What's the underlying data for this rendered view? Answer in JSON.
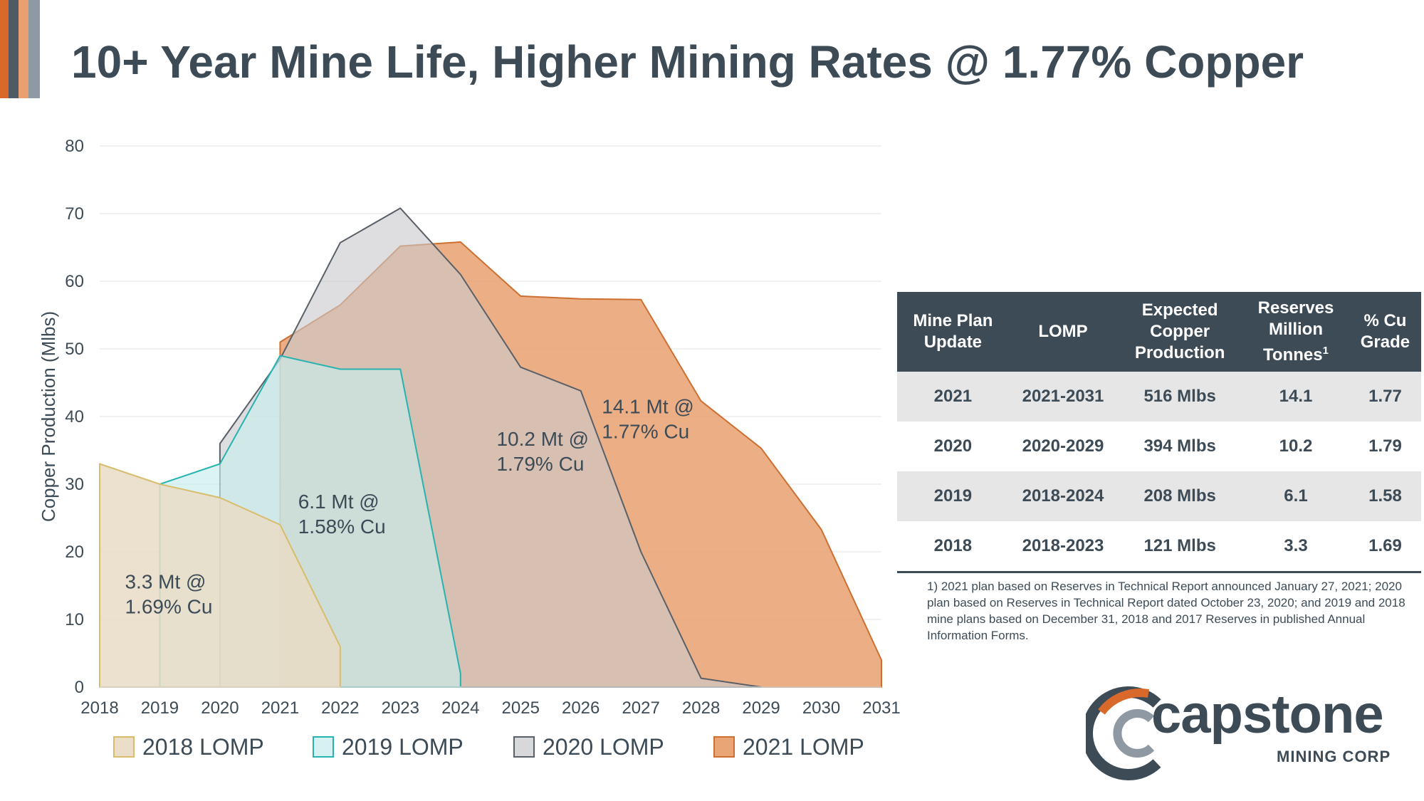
{
  "title": "10+ Year Mine Life, Higher Mining Rates @ 1.77% Copper",
  "colors": {
    "dark": "#3d4b57",
    "lomp2018_fill": "#e9dcc6",
    "lomp2018_line": "#d8bd6c",
    "lomp2019_fill": "#c8ecec",
    "lomp2019_line": "#28b3b1",
    "lomp2020_fill": "#c9c9cd",
    "lomp2020_line": "#5a6068",
    "lomp2021_fill": "#e9a070",
    "lomp2021_line": "#cd6f31"
  },
  "chart_data": {
    "type": "area",
    "title": "",
    "xlabel": "",
    "ylabel": "Copper Production (Mlbs)",
    "xlim": [
      2018,
      2031
    ],
    "ylim": [
      0,
      80
    ],
    "yticks": [
      0,
      10,
      20,
      30,
      40,
      50,
      60,
      70,
      80
    ],
    "xticks": [
      2018,
      2019,
      2020,
      2021,
      2022,
      2023,
      2024,
      2025,
      2026,
      2027,
      2028,
      2029,
      2030,
      2031
    ],
    "grid": true,
    "legend_position": "bottom",
    "series": [
      {
        "name": "2021 LOMP",
        "points": [
          [
            2021,
            0
          ],
          [
            2021,
            51
          ],
          [
            2022,
            56.5
          ],
          [
            2023,
            65.2
          ],
          [
            2024,
            65.8
          ],
          [
            2025,
            57.8
          ],
          [
            2026,
            57.4
          ],
          [
            2027,
            57.3
          ],
          [
            2028,
            42.3
          ],
          [
            2029,
            35.3
          ],
          [
            2030,
            23.3
          ],
          [
            2031,
            4
          ],
          [
            2031,
            0
          ]
        ]
      },
      {
        "name": "2020 LOMP",
        "points": [
          [
            2020,
            0
          ],
          [
            2020,
            36
          ],
          [
            2021,
            48.5
          ],
          [
            2022,
            65.7
          ],
          [
            2023,
            70.8
          ],
          [
            2024,
            61
          ],
          [
            2025,
            47.3
          ],
          [
            2026,
            43.8
          ],
          [
            2027,
            20
          ],
          [
            2028,
            1.3
          ],
          [
            2029,
            0
          ]
        ]
      },
      {
        "name": "2019 LOMP",
        "points": [
          [
            2019,
            0
          ],
          [
            2019,
            30
          ],
          [
            2020,
            33
          ],
          [
            2021,
            49
          ],
          [
            2022,
            47
          ],
          [
            2023,
            47
          ],
          [
            2024,
            2
          ],
          [
            2024,
            0
          ]
        ]
      },
      {
        "name": "2018 LOMP",
        "points": [
          [
            2018,
            0
          ],
          [
            2018,
            33
          ],
          [
            2019,
            30
          ],
          [
            2020,
            28
          ],
          [
            2021,
            24
          ],
          [
            2022,
            6
          ],
          [
            2022,
            0
          ]
        ]
      }
    ],
    "annotations": [
      {
        "line1": "14.1 Mt @",
        "line2": "1.77% Cu",
        "x": 2026.35,
        "y": 40.5
      },
      {
        "line1": "10.2 Mt @",
        "line2": "1.79% Cu",
        "x": 2024.6,
        "y": 35.7
      },
      {
        "line1": "6.1 Mt @",
        "line2": "1.58% Cu",
        "x": 2021.3,
        "y": 26.4
      },
      {
        "line1": "3.3 Mt @",
        "line2": "1.69% Cu",
        "x": 2018.42,
        "y": 14.6
      }
    ],
    "legend": [
      "2018 LOMP",
      "2019 LOMP",
      "2020 LOMP",
      "2021 LOMP"
    ]
  },
  "table": {
    "headers": [
      {
        "lines": [
          "Mine Plan",
          "Update"
        ]
      },
      {
        "lines": [
          "LOMP"
        ]
      },
      {
        "lines": [
          "Expected",
          "Copper",
          "Production"
        ]
      },
      {
        "lines": [
          "Reserves",
          "Million",
          "Tonnes"
        ],
        "sup": "1"
      },
      {
        "lines": [
          "% Cu",
          "Grade"
        ]
      }
    ],
    "rows": [
      [
        "2021",
        "2021-2031",
        "516 Mlbs",
        "14.1",
        "1.77"
      ],
      [
        "2020",
        "2020-2029",
        "394 Mlbs",
        "10.2",
        "1.79"
      ],
      [
        "2019",
        "2018-2024",
        "208 Mlbs",
        "6.1",
        "1.58"
      ],
      [
        "2018",
        "2018-2023",
        "121 Mlbs",
        "3.3",
        "1.69"
      ]
    ]
  },
  "footnote": "1) 2021 plan based on Reserves in Technical Report announced January 27, 2021; 2020 plan based on Reserves in Technical Report dated October 23, 2020; and 2019 and 2018 mine plans based on December 31, 2018 and 2017 Reserves in published Annual Information Forms.",
  "logo": {
    "word": "capstone",
    "sub": "MINING CORP"
  }
}
